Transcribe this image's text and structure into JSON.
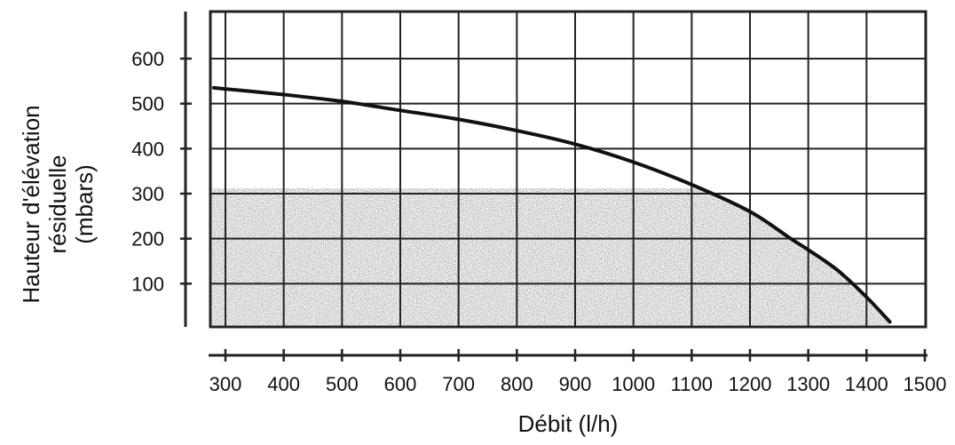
{
  "chart_data": {
    "type": "line",
    "title": "",
    "xlabel": "Débit (l/h)",
    "ylabel_lines": [
      "Hauteur d'élévation",
      "résiduelle",
      "(mbars)"
    ],
    "x_ticks": [
      300,
      400,
      500,
      600,
      700,
      800,
      900,
      1000,
      1100,
      1200,
      1300,
      1400,
      1500
    ],
    "y_ticks": [
      100,
      200,
      300,
      400,
      500,
      600
    ],
    "xlim": [
      280,
      1500
    ],
    "ylim": [
      0,
      700
    ],
    "grid": true,
    "series": [
      {
        "x": [
          280,
          400,
          500,
          600,
          700,
          800,
          900,
          1000,
          1100,
          1200,
          1270,
          1300,
          1350,
          1400,
          1440
        ],
        "y": [
          535,
          520,
          505,
          485,
          465,
          440,
          410,
          370,
          320,
          260,
          200,
          175,
          130,
          70,
          15
        ]
      }
    ],
    "shaded_region": "under-curve, y 0–300",
    "colors": {
      "line": "#111111",
      "grid": "#222222",
      "shade": "#9a9a9a"
    }
  }
}
